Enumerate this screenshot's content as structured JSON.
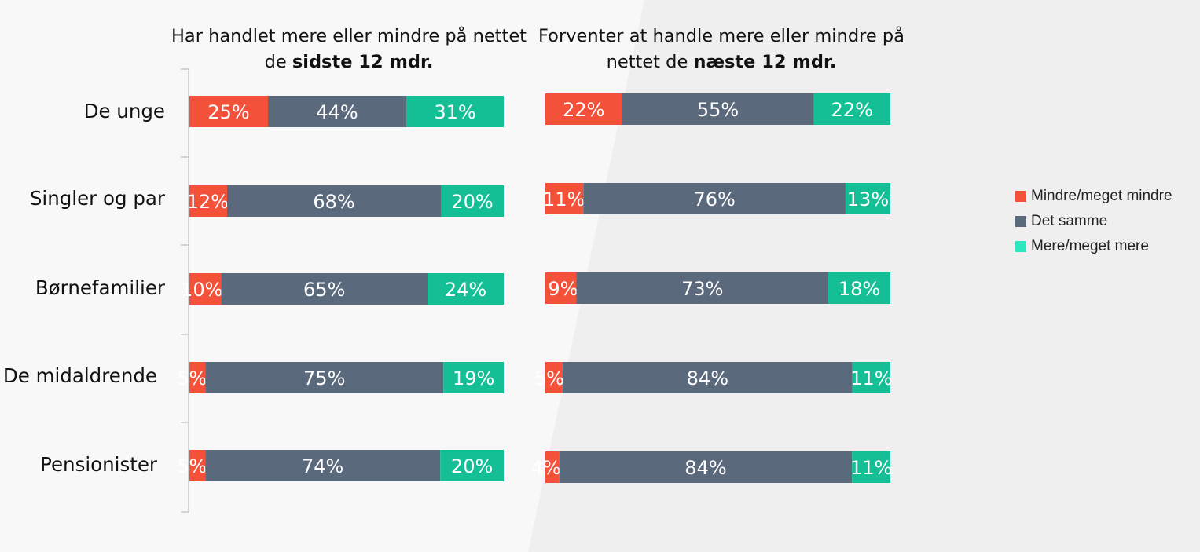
{
  "chart_data": {
    "type": "bar",
    "stacked": true,
    "orientation": "horizontal",
    "categories": [
      "De unge",
      "Singler og par",
      "Børnefamilier",
      "De midaldrende",
      "Pensionister"
    ],
    "colors": {
      "Mindre/meget mindre": "#f4513b",
      "Det samme": "#5b697d",
      "Mere/meget mere": "#14bf96"
    },
    "legend_position": "right",
    "panels": [
      {
        "title_prefix": "Har handlet mere eller mindre på nettet de ",
        "title_bold": "sidste 12 mdr.",
        "series": [
          {
            "name": "Mindre/meget mindre",
            "values": [
              25,
              12,
              10,
              5,
              5
            ]
          },
          {
            "name": "Det samme",
            "values": [
              44,
              68,
              65,
              75,
              74
            ]
          },
          {
            "name": "Mere/meget mere",
            "values": [
              31,
              20,
              24,
              19,
              20
            ]
          }
        ],
        "labels": [
          [
            "25%",
            "44%",
            "31%"
          ],
          [
            "12%",
            "68%",
            "20%"
          ],
          [
            "10%",
            "65%",
            "24%"
          ],
          [
            "5%",
            "75%",
            "19%"
          ],
          [
            "5%",
            "74%",
            "20%"
          ]
        ]
      },
      {
        "title_prefix": "Forventer at handle mere eller mindre på nettet de ",
        "title_bold": "næste 12 mdr.",
        "series": [
          {
            "name": "Mindre/meget mindre",
            "values": [
              22,
              11,
              9,
              5,
              4
            ]
          },
          {
            "name": "Det samme",
            "values": [
              55,
              76,
              73,
              84,
              84
            ]
          },
          {
            "name": "Mere/meget mere",
            "values": [
              22,
              13,
              18,
              11,
              11
            ]
          }
        ],
        "labels": [
          [
            "22%",
            "55%",
            "22%"
          ],
          [
            "11%",
            "76%",
            "13%"
          ],
          [
            "9%",
            "73%",
            "18%"
          ],
          [
            "5%",
            "84%",
            "11%"
          ],
          [
            "4%",
            "84%",
            "11%"
          ]
        ]
      }
    ]
  },
  "legend": {
    "items": [
      {
        "label": "Mindre/meget mindre",
        "color": "#f4513b"
      },
      {
        "label": "Det samme",
        "color": "#5b697d"
      },
      {
        "label": "Mere/meget mere",
        "color": "#2ee6c0"
      }
    ]
  }
}
